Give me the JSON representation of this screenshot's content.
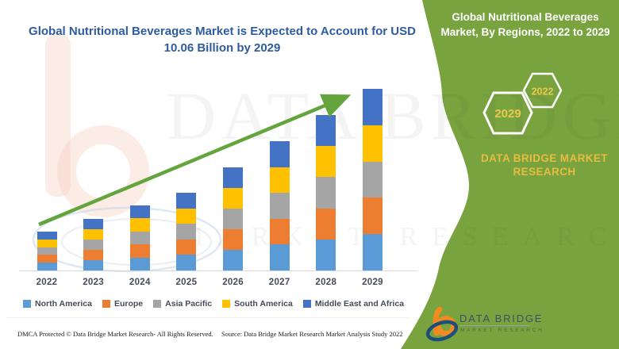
{
  "title": {
    "line1": "Global Nutritional Beverages Market is Expected to Account for USD",
    "line2": "10.06 Billion by 2029"
  },
  "side_panel": {
    "bg_color": "#78A33E",
    "heading_line1": "Global Nutritional Beverages",
    "heading_line2": "Market, By Regions, 2022 to 2029",
    "hexagon_front": "2029",
    "hexagon_back": "2022",
    "brand_line1": "DATA BRIDGE MARKET",
    "brand_line2": "RESEARCH",
    "accent_gold": "#E8BC3F",
    "hexagon_number_color": "#EDC84E"
  },
  "chart_data": {
    "type": "bar",
    "stacked": true,
    "title": "Global Nutritional Beverages Market is Expected to Account for USD 10.06 Billion by 2029",
    "unit": "USD Billion",
    "categories": [
      "2022",
      "2023",
      "2024",
      "2025",
      "2026",
      "2027",
      "2028",
      "2029"
    ],
    "series": [
      {
        "name": "North America",
        "color": "#5B9BD5",
        "values": [
          0.43,
          0.57,
          0.72,
          0.86,
          1.14,
          1.43,
          1.72,
          2.01
        ]
      },
      {
        "name": "Europe",
        "color": "#ED7D31",
        "values": [
          0.43,
          0.57,
          0.72,
          0.86,
          1.14,
          1.43,
          1.72,
          2.01
        ]
      },
      {
        "name": "Asia Pacific",
        "color": "#A5A5A5",
        "values": [
          0.43,
          0.57,
          0.72,
          0.86,
          1.14,
          1.43,
          1.72,
          2.01
        ]
      },
      {
        "name": "South America",
        "color": "#FFC000",
        "values": [
          0.43,
          0.57,
          0.72,
          0.86,
          1.14,
          1.43,
          1.72,
          2.01
        ]
      },
      {
        "name": "Middle East and Africa",
        "color": "#4472C4",
        "values": [
          0.43,
          0.58,
          0.72,
          0.87,
          1.15,
          1.44,
          1.73,
          2.02
        ]
      }
    ],
    "totals_usd_billion_estimated": [
      2.15,
      2.86,
      3.6,
      4.31,
      5.71,
      7.16,
      8.61,
      10.06
    ],
    "ylim": [
      0,
      10.5
    ],
    "grid": false,
    "y_axis_visible": false,
    "legend_position": "bottom",
    "trend_arrow": {
      "color": "#63A53C",
      "direction": "up-right"
    }
  },
  "watermark": {
    "line1": "DATA BRIDGE",
    "line2": "MARKET RESEARCH"
  },
  "logo": {
    "name": "DATA BRIDGE",
    "tagline": "MARKET RESEARCH"
  },
  "footer": {
    "dmca": "DMCA Protected © Data Bridge Market Research- All Rights Reserved.",
    "source": "Source: Data Bridge Market Research Market Analysis Study 2022"
  },
  "colors": {
    "title_blue": "#2E5C9E",
    "axis_text": "#454B59",
    "axis_line": "#D9D9D9"
  }
}
